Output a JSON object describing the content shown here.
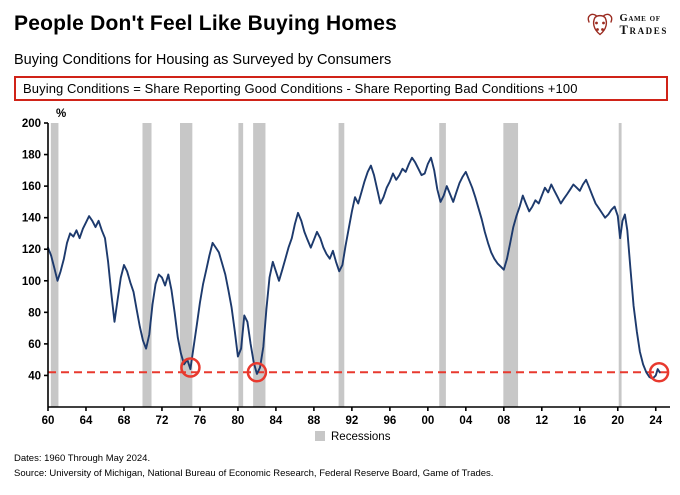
{
  "header": {
    "title": "People Don't Feel Like Buying Homes",
    "logo": {
      "line1": "Game of",
      "line2": "Trades"
    }
  },
  "subtitle": "Buying Conditions for Housing as Surveyed by Consumers",
  "formula_note": "Buying Conditions = Share Reporting Good Conditions - Share Reporting Bad Conditions +100",
  "footer": {
    "dates": "Dates: 1960 Through May 2024.",
    "source": "Source: University of Michigan, National Bureau of Economic Research, Federal Reserve Board, Game of Trades."
  },
  "chart_data": {
    "type": "line",
    "title": "Buying Conditions for Housing as Surveyed by Consumers",
    "ylabel": "%",
    "xlabel": "",
    "xlim": [
      1960,
      2025.5
    ],
    "ylim": [
      20,
      200
    ],
    "y_ticks": [
      200,
      180,
      160,
      140,
      120,
      100,
      80,
      60,
      40
    ],
    "x_tick_years": [
      1960,
      1964,
      1968,
      1972,
      1976,
      1980,
      1984,
      1988,
      1992,
      1996,
      2000,
      2004,
      2008,
      2012,
      2016,
      2020,
      2024
    ],
    "x_tick_labels": [
      "60",
      "64",
      "68",
      "72",
      "76",
      "80",
      "84",
      "88",
      "92",
      "96",
      "00",
      "04",
      "08",
      "12",
      "16",
      "20",
      "24"
    ],
    "legend_label": "Recessions",
    "legend_position": "bottom-center",
    "grid": false,
    "threshold": 42,
    "recessions": [
      [
        1960.3,
        1961.1
      ],
      [
        1969.95,
        1970.9
      ],
      [
        1973.9,
        1975.2
      ],
      [
        1980.05,
        1980.55
      ],
      [
        1981.6,
        1982.9
      ],
      [
        1990.6,
        1991.2
      ],
      [
        2001.2,
        2001.9
      ],
      [
        2007.95,
        2009.5
      ],
      [
        2020.1,
        2020.4
      ]
    ],
    "highlights": [
      [
        1975.0,
        45
      ],
      [
        1982.0,
        42
      ],
      [
        2024.35,
        42
      ]
    ],
    "series": [
      [
        1960.0,
        121
      ],
      [
        1960.33,
        116
      ],
      [
        1960.67,
        108
      ],
      [
        1961.0,
        100
      ],
      [
        1961.33,
        106
      ],
      [
        1961.67,
        114
      ],
      [
        1962.0,
        124
      ],
      [
        1962.33,
        130
      ],
      [
        1962.67,
        128
      ],
      [
        1963.0,
        132
      ],
      [
        1963.33,
        127
      ],
      [
        1963.67,
        133
      ],
      [
        1964.0,
        137
      ],
      [
        1964.33,
        141
      ],
      [
        1964.67,
        138
      ],
      [
        1965.0,
        134
      ],
      [
        1965.33,
        138
      ],
      [
        1965.67,
        132
      ],
      [
        1966.0,
        127
      ],
      [
        1966.33,
        112
      ],
      [
        1966.67,
        92
      ],
      [
        1967.0,
        74
      ],
      [
        1967.33,
        88
      ],
      [
        1967.67,
        102
      ],
      [
        1968.0,
        110
      ],
      [
        1968.33,
        106
      ],
      [
        1968.67,
        99
      ],
      [
        1969.0,
        93
      ],
      [
        1969.33,
        82
      ],
      [
        1969.67,
        71
      ],
      [
        1970.0,
        62
      ],
      [
        1970.33,
        57
      ],
      [
        1970.67,
        66
      ],
      [
        1971.0,
        85
      ],
      [
        1971.33,
        98
      ],
      [
        1971.67,
        104
      ],
      [
        1972.0,
        102
      ],
      [
        1972.33,
        97
      ],
      [
        1972.67,
        104
      ],
      [
        1973.0,
        94
      ],
      [
        1973.33,
        80
      ],
      [
        1973.67,
        64
      ],
      [
        1974.0,
        54
      ],
      [
        1974.33,
        47
      ],
      [
        1974.67,
        50
      ],
      [
        1975.0,
        44
      ],
      [
        1975.33,
        58
      ],
      [
        1975.67,
        72
      ],
      [
        1976.0,
        86
      ],
      [
        1976.33,
        98
      ],
      [
        1976.67,
        107
      ],
      [
        1977.0,
        116
      ],
      [
        1977.33,
        124
      ],
      [
        1977.67,
        121
      ],
      [
        1978.0,
        118
      ],
      [
        1978.33,
        111
      ],
      [
        1978.67,
        104
      ],
      [
        1979.0,
        94
      ],
      [
        1979.33,
        83
      ],
      [
        1979.67,
        68
      ],
      [
        1980.0,
        52
      ],
      [
        1980.33,
        57
      ],
      [
        1980.67,
        78
      ],
      [
        1981.0,
        74
      ],
      [
        1981.33,
        60
      ],
      [
        1981.67,
        48
      ],
      [
        1982.0,
        41
      ],
      [
        1982.33,
        45
      ],
      [
        1982.67,
        58
      ],
      [
        1983.0,
        82
      ],
      [
        1983.33,
        102
      ],
      [
        1983.67,
        112
      ],
      [
        1984.0,
        106
      ],
      [
        1984.33,
        100
      ],
      [
        1984.67,
        107
      ],
      [
        1985.0,
        114
      ],
      [
        1985.33,
        121
      ],
      [
        1985.67,
        127
      ],
      [
        1986.0,
        136
      ],
      [
        1986.33,
        143
      ],
      [
        1986.67,
        138
      ],
      [
        1987.0,
        131
      ],
      [
        1987.33,
        126
      ],
      [
        1987.67,
        121
      ],
      [
        1988.0,
        126
      ],
      [
        1988.33,
        131
      ],
      [
        1988.67,
        127
      ],
      [
        1989.0,
        121
      ],
      [
        1989.33,
        117
      ],
      [
        1989.67,
        114
      ],
      [
        1990.0,
        119
      ],
      [
        1990.33,
        112
      ],
      [
        1990.67,
        106
      ],
      [
        1991.0,
        110
      ],
      [
        1991.33,
        122
      ],
      [
        1991.67,
        133
      ],
      [
        1992.0,
        144
      ],
      [
        1992.33,
        153
      ],
      [
        1992.67,
        149
      ],
      [
        1993.0,
        156
      ],
      [
        1993.33,
        163
      ],
      [
        1993.67,
        169
      ],
      [
        1994.0,
        173
      ],
      [
        1994.33,
        167
      ],
      [
        1994.67,
        158
      ],
      [
        1995.0,
        149
      ],
      [
        1995.33,
        153
      ],
      [
        1995.67,
        159
      ],
      [
        1996.0,
        163
      ],
      [
        1996.33,
        168
      ],
      [
        1996.67,
        164
      ],
      [
        1997.0,
        167
      ],
      [
        1997.33,
        171
      ],
      [
        1997.67,
        169
      ],
      [
        1998.0,
        174
      ],
      [
        1998.33,
        178
      ],
      [
        1998.67,
        175
      ],
      [
        1999.0,
        171
      ],
      [
        1999.33,
        167
      ],
      [
        1999.67,
        168
      ],
      [
        2000.0,
        174
      ],
      [
        2000.33,
        178
      ],
      [
        2000.67,
        170
      ],
      [
        2001.0,
        158
      ],
      [
        2001.33,
        150
      ],
      [
        2001.67,
        154
      ],
      [
        2002.0,
        160
      ],
      [
        2002.33,
        155
      ],
      [
        2002.67,
        150
      ],
      [
        2003.0,
        156
      ],
      [
        2003.33,
        162
      ],
      [
        2003.67,
        166
      ],
      [
        2004.0,
        169
      ],
      [
        2004.33,
        164
      ],
      [
        2004.67,
        159
      ],
      [
        2005.0,
        153
      ],
      [
        2005.33,
        146
      ],
      [
        2005.67,
        139
      ],
      [
        2006.0,
        131
      ],
      [
        2006.33,
        124
      ],
      [
        2006.67,
        118
      ],
      [
        2007.0,
        114
      ],
      [
        2007.33,
        111
      ],
      [
        2007.67,
        109
      ],
      [
        2008.0,
        107
      ],
      [
        2008.33,
        114
      ],
      [
        2008.67,
        124
      ],
      [
        2009.0,
        134
      ],
      [
        2009.33,
        141
      ],
      [
        2009.67,
        147
      ],
      [
        2010.0,
        154
      ],
      [
        2010.33,
        149
      ],
      [
        2010.67,
        144
      ],
      [
        2011.0,
        147
      ],
      [
        2011.33,
        151
      ],
      [
        2011.67,
        149
      ],
      [
        2012.0,
        154
      ],
      [
        2012.33,
        159
      ],
      [
        2012.67,
        156
      ],
      [
        2013.0,
        161
      ],
      [
        2013.33,
        157
      ],
      [
        2013.67,
        153
      ],
      [
        2014.0,
        149
      ],
      [
        2014.33,
        152
      ],
      [
        2014.67,
        155
      ],
      [
        2015.0,
        158
      ],
      [
        2015.33,
        161
      ],
      [
        2015.67,
        159
      ],
      [
        2016.0,
        157
      ],
      [
        2016.33,
        161
      ],
      [
        2016.67,
        164
      ],
      [
        2017.0,
        159
      ],
      [
        2017.33,
        154
      ],
      [
        2017.67,
        149
      ],
      [
        2018.0,
        146
      ],
      [
        2018.33,
        143
      ],
      [
        2018.67,
        140
      ],
      [
        2019.0,
        142
      ],
      [
        2019.33,
        145
      ],
      [
        2019.67,
        147
      ],
      [
        2020.0,
        141
      ],
      [
        2020.25,
        127
      ],
      [
        2020.5,
        138
      ],
      [
        2020.75,
        142
      ],
      [
        2021.0,
        132
      ],
      [
        2021.33,
        108
      ],
      [
        2021.67,
        84
      ],
      [
        2022.0,
        68
      ],
      [
        2022.33,
        55
      ],
      [
        2022.67,
        47
      ],
      [
        2023.0,
        42
      ],
      [
        2023.33,
        39
      ],
      [
        2023.67,
        38
      ],
      [
        2024.0,
        40
      ],
      [
        2024.2,
        44
      ],
      [
        2024.42,
        42
      ]
    ],
    "colors": {
      "line": "#1d3a6d",
      "recession": "#c7c7c7",
      "threshold": "#e8392e",
      "axis": "#000000",
      "box_border": "#d02318",
      "logo_red": "#9b2b20"
    }
  }
}
